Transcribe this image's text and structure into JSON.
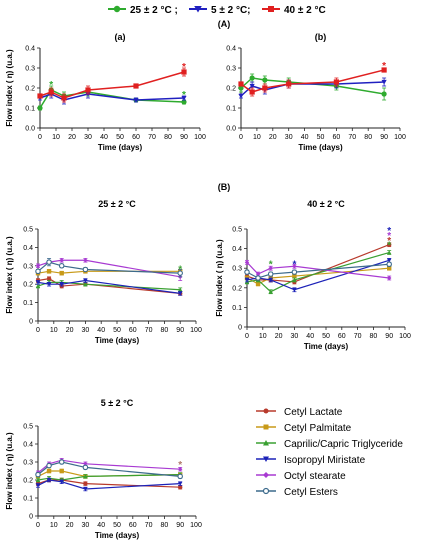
{
  "top_legend": [
    {
      "label": "25 ± 2 °C ;",
      "color": "#2eab2e"
    },
    {
      "label": "5 ± 2 °C;",
      "color": "#2020c0"
    },
    {
      "label": "40 ± 2 °C",
      "color": "#e02020"
    }
  ],
  "section_a_label": "(A)",
  "section_b_label": "(B)",
  "bottom_legend": [
    {
      "label": "Cetyl Lactate",
      "color": "#b83a2c"
    },
    {
      "label": "Cetyl Palmitate",
      "color": "#c89a18"
    },
    {
      "label": "Caprilic/Capric Triglyceride",
      "color": "#3aa032"
    },
    {
      "label": "Isopropyl Miristate",
      "color": "#1c22b8"
    },
    {
      "label": "Octyl   stearate",
      "color": "#a83ad2"
    },
    {
      "label": "Cetyl Esters",
      "color": "#3c6a8c"
    }
  ],
  "chart_data": [
    {
      "id": "a",
      "type": "line",
      "title": "(a)",
      "xlabel": "Time (days)",
      "ylabel": "Flow index ( η) (u.a.)",
      "xlim": [
        0,
        100
      ],
      "ylim": [
        0,
        0.4
      ],
      "xticks": [
        0,
        10,
        20,
        30,
        40,
        50,
        60,
        70,
        80,
        90,
        100
      ],
      "yticks": [
        0.0,
        0.1,
        0.2,
        0.3,
        0.4
      ],
      "ytick_labels": [
        "0.0",
        "0.1",
        "0.2",
        "0.3",
        "0.4"
      ],
      "x": [
        0,
        7,
        15,
        30,
        60,
        90
      ],
      "series": [
        {
          "color": "#2eab2e",
          "values": [
            0.1,
            0.19,
            0.16,
            0.18,
            0.14,
            0.13
          ],
          "errors": [
            0.01,
            0.02,
            0.02,
            0.02,
            0.01,
            0.01
          ]
        },
        {
          "color": "#2020c0",
          "values": [
            0.15,
            0.17,
            0.14,
            0.17,
            0.14,
            0.15
          ],
          "errors": [
            0.01,
            0.02,
            0.02,
            0.02,
            0.01,
            0.01
          ]
        },
        {
          "color": "#e02020",
          "values": [
            0.16,
            0.18,
            0.15,
            0.19,
            0.21,
            0.28
          ],
          "errors": [
            0.01,
            0.02,
            0.02,
            0.02,
            0.01,
            0.02
          ]
        }
      ],
      "markers": [
        {
          "x": 7,
          "y": 0.22,
          "text": "*",
          "color": "#2eab2e"
        },
        {
          "x": 90,
          "y": 0.31,
          "text": "*",
          "color": "#e02020"
        },
        {
          "x": 90,
          "y": 0.17,
          "text": "*",
          "color": "#2eab2e"
        }
      ]
    },
    {
      "id": "b",
      "type": "line",
      "title": "(b)",
      "xlabel": "Time (days)",
      "ylabel": "",
      "xlim": [
        0,
        100
      ],
      "ylim": [
        0,
        0.4
      ],
      "xticks": [
        0,
        10,
        20,
        30,
        40,
        50,
        60,
        70,
        80,
        90,
        100
      ],
      "yticks": [
        0.0,
        0.1,
        0.2,
        0.3,
        0.4
      ],
      "ytick_labels": [
        "0.0",
        "0.1",
        "0.2",
        "0.3",
        "0.4"
      ],
      "x": [
        0,
        7,
        15,
        30,
        60,
        90
      ],
      "series": [
        {
          "color": "#2eab2e",
          "values": [
            0.2,
            0.25,
            0.24,
            0.23,
            0.21,
            0.17
          ],
          "errors": [
            0.02,
            0.02,
            0.02,
            0.02,
            0.02,
            0.03
          ]
        },
        {
          "color": "#2020c0",
          "values": [
            0.16,
            0.21,
            0.19,
            0.22,
            0.22,
            0.23
          ],
          "errors": [
            0.01,
            0.02,
            0.02,
            0.02,
            0.02,
            0.02
          ]
        },
        {
          "color": "#e02020",
          "values": [
            0.22,
            0.18,
            0.2,
            0.22,
            0.23,
            0.29
          ],
          "errors": [
            0.01,
            0.02,
            0.02,
            0.02,
            0.02,
            0.01
          ]
        }
      ],
      "markers": [
        {
          "x": 90,
          "y": 0.315,
          "text": "*",
          "color": "#e02020"
        }
      ]
    },
    {
      "id": "b25",
      "type": "line",
      "title": "25 ± 2 °C",
      "xlabel": "Time (days)",
      "ylabel": "Flow index ( η) (u.a.)",
      "xlim": [
        0,
        100
      ],
      "ylim": [
        0,
        0.5
      ],
      "xticks": [
        0,
        10,
        20,
        30,
        40,
        50,
        60,
        70,
        80,
        90,
        100
      ],
      "yticks": [
        0.0,
        0.1,
        0.2,
        0.3,
        0.4,
        0.5
      ],
      "ytick_labels": [
        "0",
        "0.1",
        "0.2",
        "0.3",
        "0.4",
        "0.5"
      ],
      "x": [
        0,
        7,
        15,
        30,
        90
      ],
      "series": [
        {
          "name": "Cetyl Lactate",
          "color": "#b83a2c",
          "values": [
            0.22,
            0.23,
            0.19,
            0.2,
            0.15
          ],
          "errors": [
            0.01,
            0.01,
            0.01,
            0.01,
            0.01
          ]
        },
        {
          "name": "Cetyl Palmitate",
          "color": "#c89a18",
          "values": [
            0.26,
            0.27,
            0.26,
            0.27,
            0.27
          ],
          "errors": [
            0.01,
            0.01,
            0.01,
            0.01,
            0.01
          ]
        },
        {
          "name": "Caprilic/Capric Triglyceride",
          "color": "#3aa032",
          "values": [
            0.19,
            0.21,
            0.21,
            0.2,
            0.17
          ],
          "errors": [
            0.01,
            0.01,
            0.01,
            0.01,
            0.01
          ]
        },
        {
          "name": "Isopropyl Miristate",
          "color": "#1c22b8",
          "values": [
            0.21,
            0.2,
            0.2,
            0.22,
            0.15
          ],
          "errors": [
            0.01,
            0.01,
            0.01,
            0.01,
            0.01
          ]
        },
        {
          "name": "Octyl   stearate",
          "color": "#a83ad2",
          "values": [
            0.3,
            0.32,
            0.33,
            0.33,
            0.24
          ],
          "errors": [
            0.01,
            0.01,
            0.01,
            0.01,
            0.02
          ]
        },
        {
          "name": "Cetyl Esters",
          "color": "#3c6a8c",
          "values": [
            0.27,
            0.32,
            0.3,
            0.28,
            0.26
          ],
          "errors": [
            0.01,
            0.02,
            0.01,
            0.01,
            0.02
          ]
        }
      ],
      "markers": [
        {
          "x": 90,
          "y": 0.285,
          "text": "*",
          "color": "#3aa032"
        }
      ]
    },
    {
      "id": "b40",
      "type": "line",
      "title": "40 ± 2 °C",
      "xlabel": "Time (days)",
      "ylabel": "Flow index ( η) (u.a.)",
      "xlim": [
        0,
        100
      ],
      "ylim": [
        0,
        0.5
      ],
      "xticks": [
        0,
        10,
        20,
        30,
        40,
        50,
        60,
        70,
        80,
        90,
        100
      ],
      "yticks": [
        0.0,
        0.1,
        0.2,
        0.3,
        0.4,
        0.5
      ],
      "ytick_labels": [
        "0",
        "0.1",
        "0.2",
        "0.3",
        "0.4",
        "0.5"
      ],
      "x": [
        0,
        7,
        15,
        30,
        90
      ],
      "series": [
        {
          "name": "Cetyl Lactate",
          "color": "#b83a2c",
          "values": [
            0.26,
            0.24,
            0.24,
            0.23,
            0.42
          ],
          "errors": [
            0.01,
            0.01,
            0.01,
            0.01,
            0.01
          ]
        },
        {
          "name": "Cetyl Palmitate",
          "color": "#c89a18",
          "values": [
            0.25,
            0.22,
            0.25,
            0.26,
            0.3
          ],
          "errors": [
            0.01,
            0.01,
            0.01,
            0.01,
            0.01
          ]
        },
        {
          "name": "Caprilic/Capric Triglyceride",
          "color": "#3aa032",
          "values": [
            0.23,
            0.24,
            0.18,
            0.24,
            0.38
          ],
          "errors": [
            0.01,
            0.01,
            0.01,
            0.01,
            0.01
          ]
        },
        {
          "name": "Isopropyl Miristate",
          "color": "#1c22b8",
          "values": [
            0.24,
            0.25,
            0.24,
            0.19,
            0.34
          ],
          "errors": [
            0.01,
            0.01,
            0.01,
            0.01,
            0.01
          ]
        },
        {
          "name": "Octyl   stearate",
          "color": "#a83ad2",
          "values": [
            0.33,
            0.27,
            0.3,
            0.31,
            0.25
          ],
          "errors": [
            0.01,
            0.01,
            0.01,
            0.01,
            0.01
          ]
        },
        {
          "name": "Cetyl Esters",
          "color": "#3c6a8c",
          "values": [
            0.28,
            0.25,
            0.27,
            0.28,
            0.32
          ],
          "errors": [
            0.01,
            0.01,
            0.01,
            0.01,
            0.01
          ]
        }
      ],
      "markers": [
        {
          "x": 90,
          "y": 0.495,
          "text": "*",
          "color": "#1c22b8"
        },
        {
          "x": 90,
          "y": 0.47,
          "text": "*",
          "color": "#a83ad2"
        },
        {
          "x": 90,
          "y": 0.445,
          "text": "*",
          "color": "#b83a2c"
        },
        {
          "x": 90,
          "y": 0.42,
          "text": "*",
          "color": "#3aa032"
        },
        {
          "x": 15,
          "y": 0.325,
          "text": "*",
          "color": "#3aa032"
        },
        {
          "x": 30,
          "y": 0.325,
          "text": "*",
          "color": "#1c22b8"
        }
      ]
    },
    {
      "id": "b5",
      "type": "line",
      "title": "5 ± 2 °C",
      "xlabel": "Time (days)",
      "ylabel": "Flow index ( η) (u.a.)",
      "xlim": [
        0,
        100
      ],
      "ylim": [
        0,
        0.5
      ],
      "xticks": [
        0,
        10,
        20,
        30,
        40,
        50,
        60,
        70,
        80,
        90,
        100
      ],
      "yticks": [
        0.0,
        0.1,
        0.2,
        0.3,
        0.4,
        0.5
      ],
      "ytick_labels": [
        "0",
        "0.1",
        "0.2",
        "0.3",
        "0.4",
        "0.5"
      ],
      "x": [
        0,
        7,
        15,
        30,
        90
      ],
      "series": [
        {
          "name": "Cetyl Lactate",
          "color": "#b83a2c",
          "values": [
            0.18,
            0.2,
            0.2,
            0.18,
            0.16
          ],
          "errors": [
            0.01,
            0.01,
            0.01,
            0.01,
            0.01
          ]
        },
        {
          "name": "Cetyl Palmitate",
          "color": "#c89a18",
          "values": [
            0.22,
            0.25,
            0.25,
            0.22,
            0.23
          ],
          "errors": [
            0.01,
            0.01,
            0.01,
            0.01,
            0.01
          ]
        },
        {
          "name": "Caprilic/Capric Triglyceride",
          "color": "#3aa032",
          "values": [
            0.2,
            0.21,
            0.2,
            0.22,
            0.23
          ],
          "errors": [
            0.01,
            0.01,
            0.01,
            0.01,
            0.01
          ]
        },
        {
          "name": "Isopropyl Miristate",
          "color": "#1c22b8",
          "values": [
            0.17,
            0.2,
            0.19,
            0.15,
            0.18
          ],
          "errors": [
            0.01,
            0.01,
            0.01,
            0.01,
            0.01
          ]
        },
        {
          "name": "Octyl   stearate",
          "color": "#a83ad2",
          "values": [
            0.24,
            0.29,
            0.31,
            0.29,
            0.26
          ],
          "errors": [
            0.01,
            0.01,
            0.01,
            0.01,
            0.01
          ]
        },
        {
          "name": "Cetyl Esters",
          "color": "#3c6a8c",
          "values": [
            0.23,
            0.28,
            0.3,
            0.27,
            0.22
          ],
          "errors": [
            0.01,
            0.01,
            0.01,
            0.01,
            0.01
          ]
        }
      ],
      "markers": [
        {
          "x": 90,
          "y": 0.29,
          "text": "*",
          "color": "#b07a6a"
        }
      ]
    }
  ]
}
